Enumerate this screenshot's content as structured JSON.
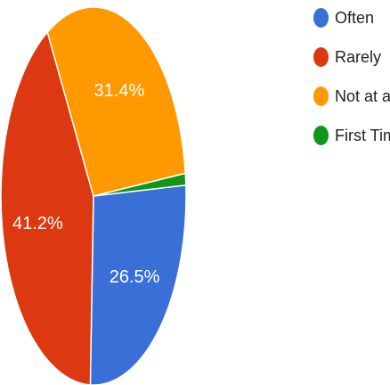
{
  "chart_data": {
    "type": "pie",
    "title": "",
    "slices": [
      {
        "label": "Often",
        "value": 26.5,
        "display": "26.5%",
        "color": "#3a6fd8"
      },
      {
        "label": "Rarely",
        "value": 41.2,
        "display": "41.2%",
        "color": "#dc3912"
      },
      {
        "label": "Not at all",
        "value": 31.4,
        "display": "31.4%",
        "color": "#ff9900"
      },
      {
        "label": "First Time",
        "value": 1.0,
        "display": "",
        "color": "#109618"
      }
    ],
    "legend_position": "right"
  }
}
